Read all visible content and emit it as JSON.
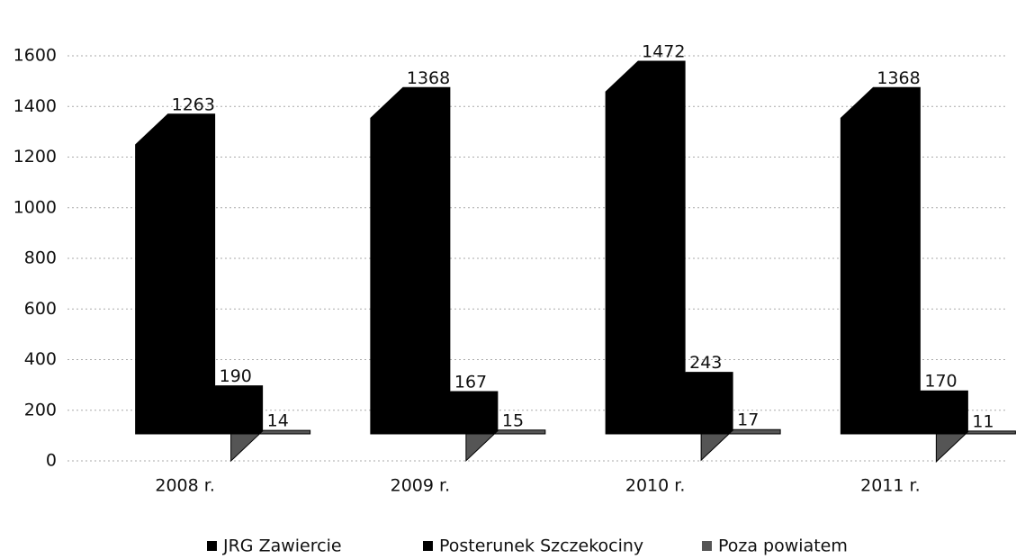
{
  "chart_data": {
    "type": "bar3d",
    "categories": [
      "2008 r.",
      "2009 r.",
      "2010 r.",
      "2011 r."
    ],
    "series": [
      {
        "name": "JRG Zawiercie",
        "color": "#000000",
        "values": [
          1263,
          1368,
          1472,
          1368
        ]
      },
      {
        "name": "Posterunek Szczekociny",
        "color": "#000000",
        "values": [
          190,
          167,
          243,
          170
        ]
      },
      {
        "name": "Poza powiatem",
        "color": "#555555",
        "values": [
          14,
          15,
          17,
          11
        ]
      }
    ],
    "ylim": [
      0,
      1600
    ],
    "yticks": [
      0,
      200,
      400,
      600,
      800,
      1000,
      1200,
      1400,
      1600
    ],
    "grid": true
  }
}
